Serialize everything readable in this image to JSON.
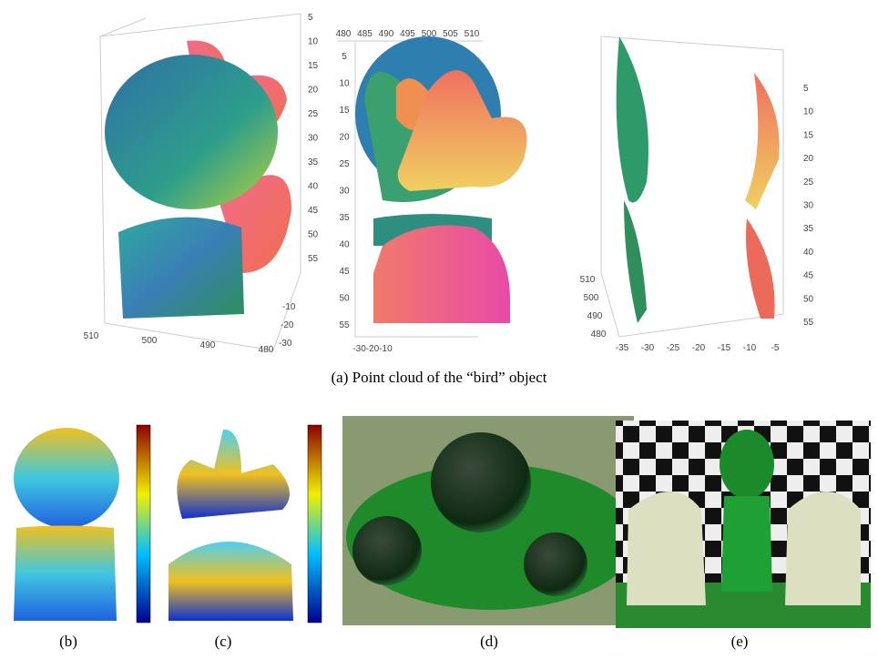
{
  "plot_a1": {
    "z_ticks": [
      5,
      10,
      15,
      20,
      25,
      30,
      35,
      40,
      45,
      50,
      55
    ],
    "x_ticks": [
      510,
      500,
      490,
      480
    ],
    "depth_ticks": [
      -10,
      -20,
      -30
    ]
  },
  "plot_a2": {
    "x_ticks": [
      480,
      485,
      490,
      495,
      500,
      505,
      510
    ],
    "y_ticks": [
      5,
      10,
      15,
      20,
      25,
      30,
      35,
      40,
      45,
      50,
      55
    ],
    "depth_label": "-30-20-10"
  },
  "plot_a3": {
    "z_ticks": [
      5,
      10,
      15,
      20,
      25,
      30,
      35,
      40,
      45,
      50,
      55
    ],
    "y_ticks": [
      510,
      500,
      490,
      480
    ],
    "x_ticks": [
      -35,
      -30,
      -25,
      -20,
      -15,
      -10,
      -5
    ]
  },
  "captions": {
    "a": "(a)  Point cloud of the “bird” object",
    "b": "(b)",
    "c": "(c)",
    "d": "(d)",
    "e": "(e)"
  }
}
